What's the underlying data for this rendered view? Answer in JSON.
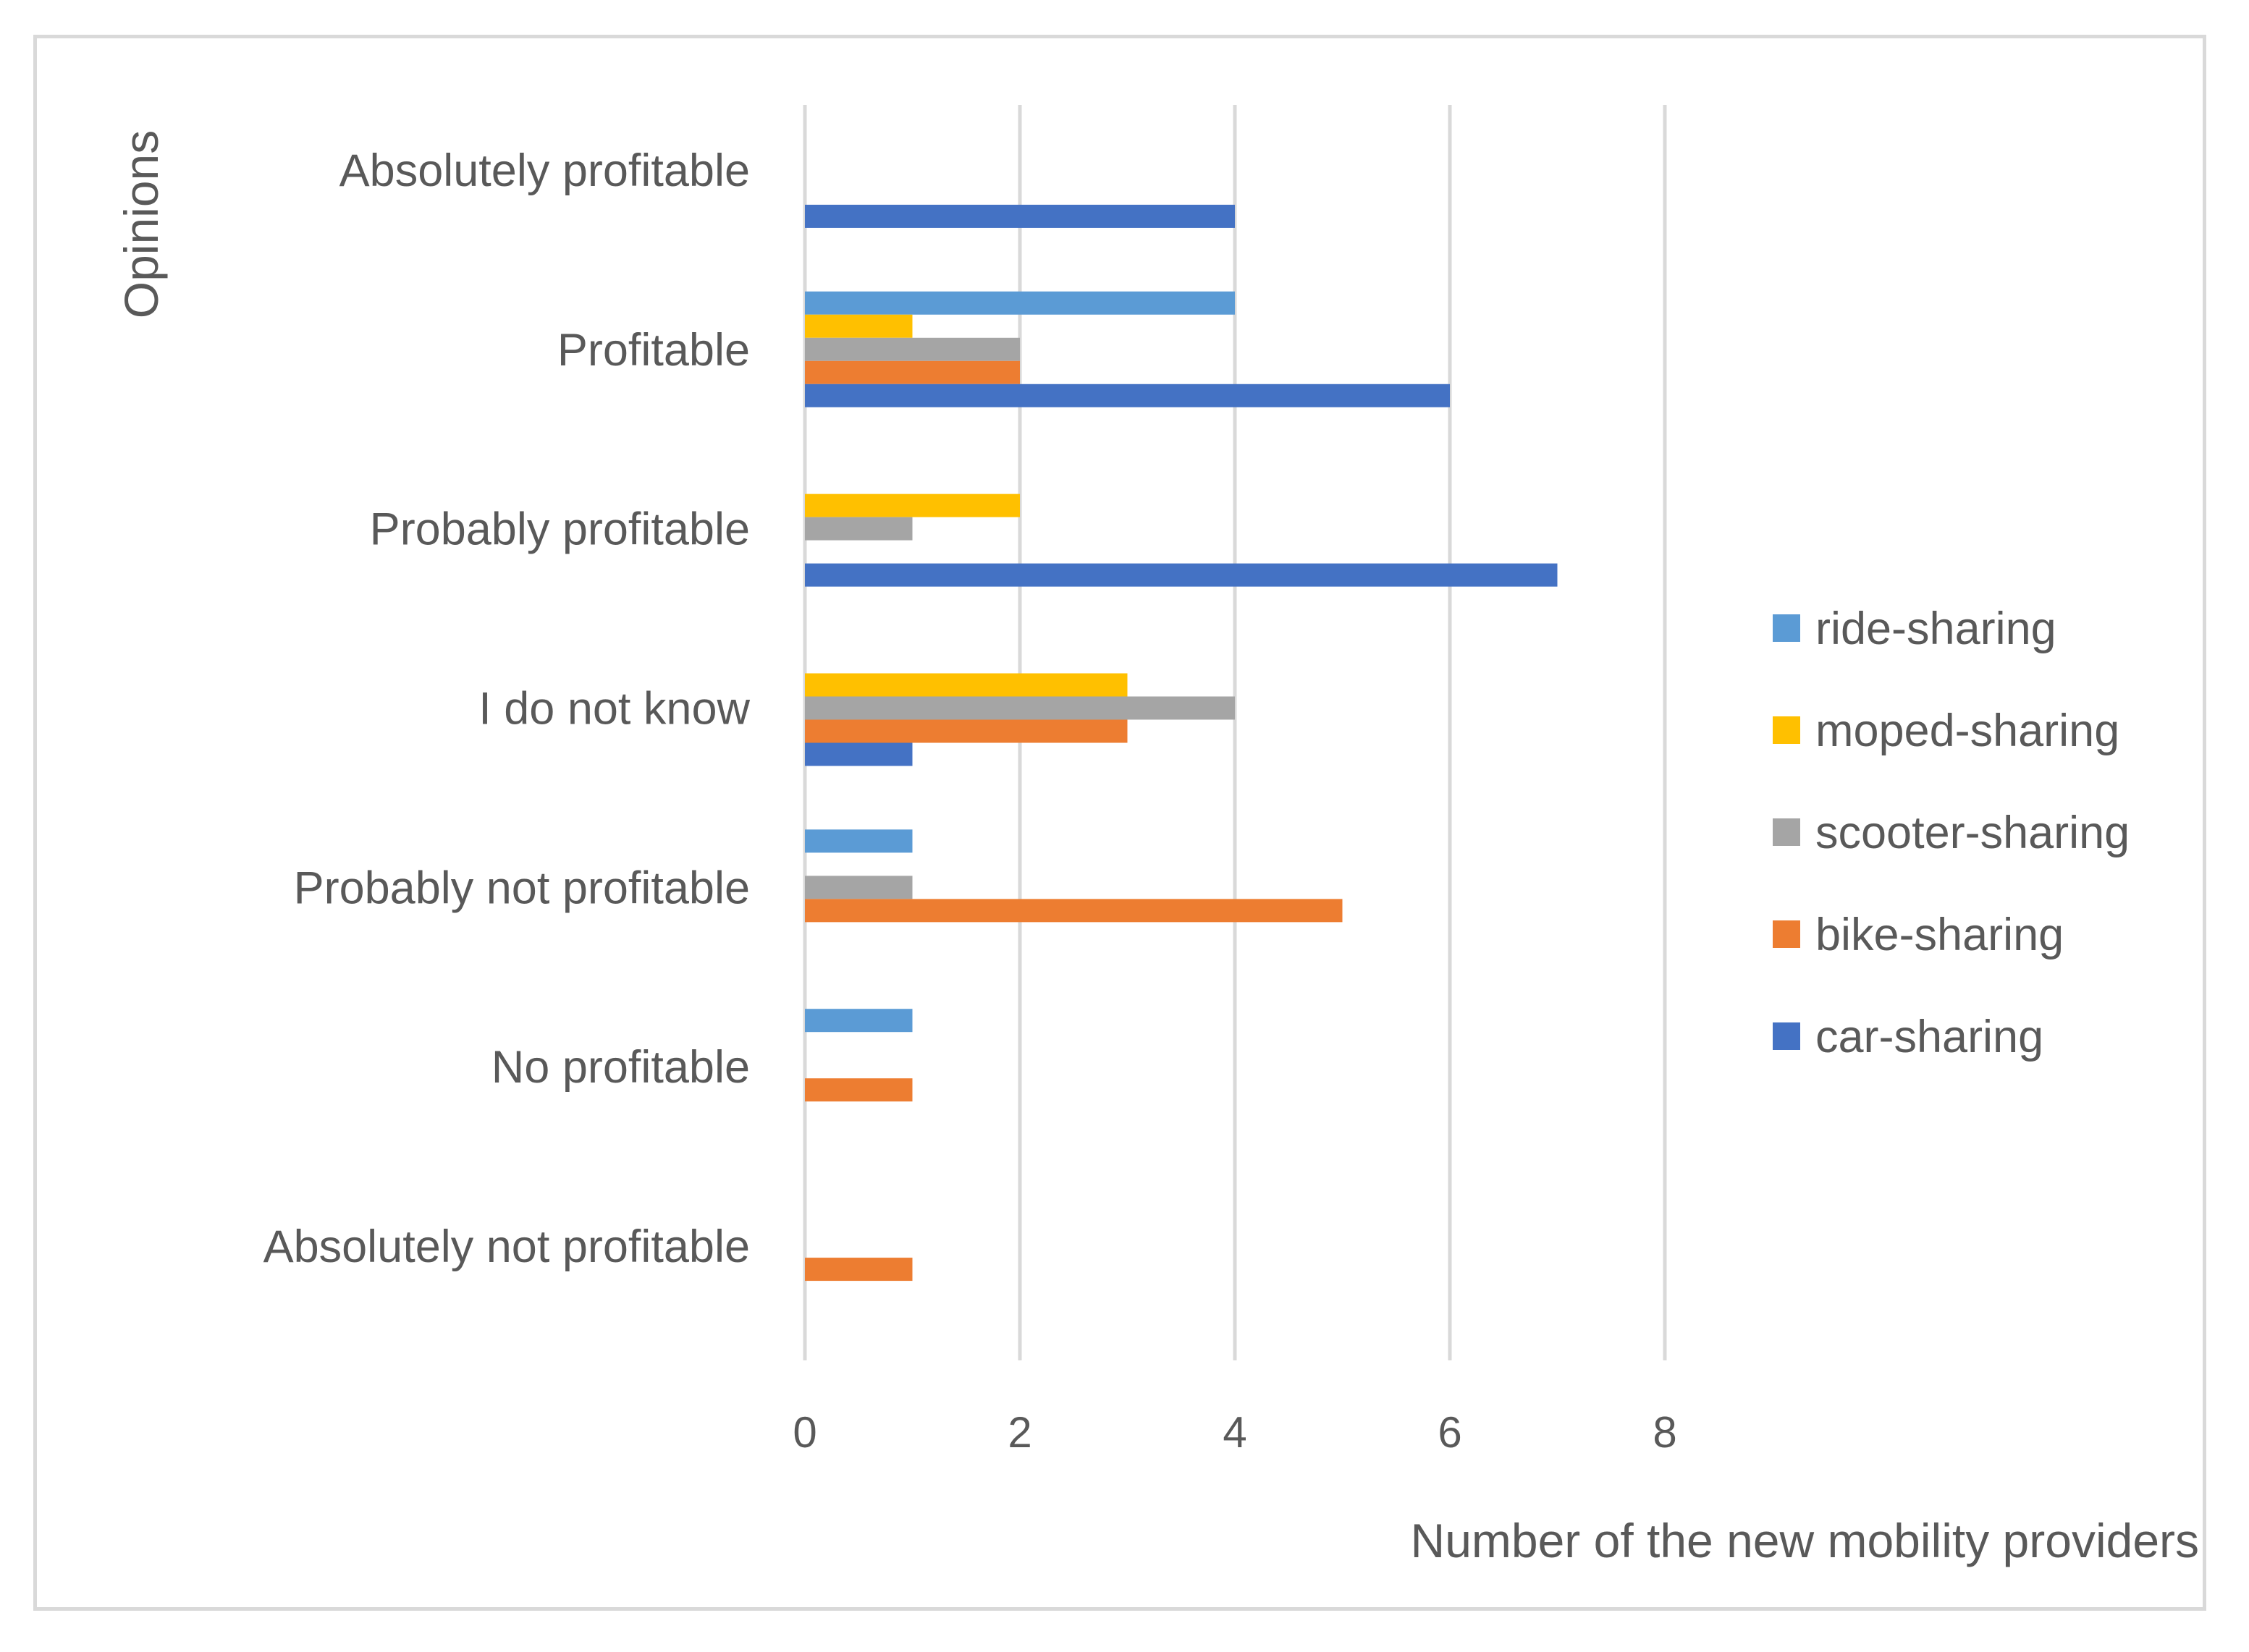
{
  "chart_data": {
    "type": "bar",
    "orientation": "horizontal",
    "xlabel": "Number of the new mobility providers",
    "ylabel": "Opinions",
    "xlim": [
      0,
      8
    ],
    "xticks": [
      0,
      2,
      4,
      6,
      8
    ],
    "grid": true,
    "legend_position": "right",
    "categories": [
      "Absolutely profitable",
      "Profitable",
      "Probably  profitable",
      "I do not know",
      "Probably not profitable",
      "No profitable",
      "Absolutely not profitable"
    ],
    "series": [
      {
        "name": "ride-sharing",
        "color": "#5b9bd5",
        "values": [
          0,
          4,
          0,
          0,
          1,
          1,
          0
        ]
      },
      {
        "name": "moped-sharing",
        "color": "#ffc000",
        "values": [
          0,
          1,
          2,
          3,
          0,
          0,
          0
        ]
      },
      {
        "name": "scooter-sharing",
        "color": "#a5a5a5",
        "values": [
          0,
          2,
          1,
          4,
          1,
          0,
          0
        ]
      },
      {
        "name": "bike-sharing",
        "color": "#ed7d31",
        "values": [
          0,
          2,
          0,
          3,
          5,
          1,
          1
        ]
      },
      {
        "name": "car-sharing",
        "color": "#4472c4",
        "values": [
          4,
          6,
          7,
          1,
          0,
          0,
          0
        ]
      }
    ]
  }
}
